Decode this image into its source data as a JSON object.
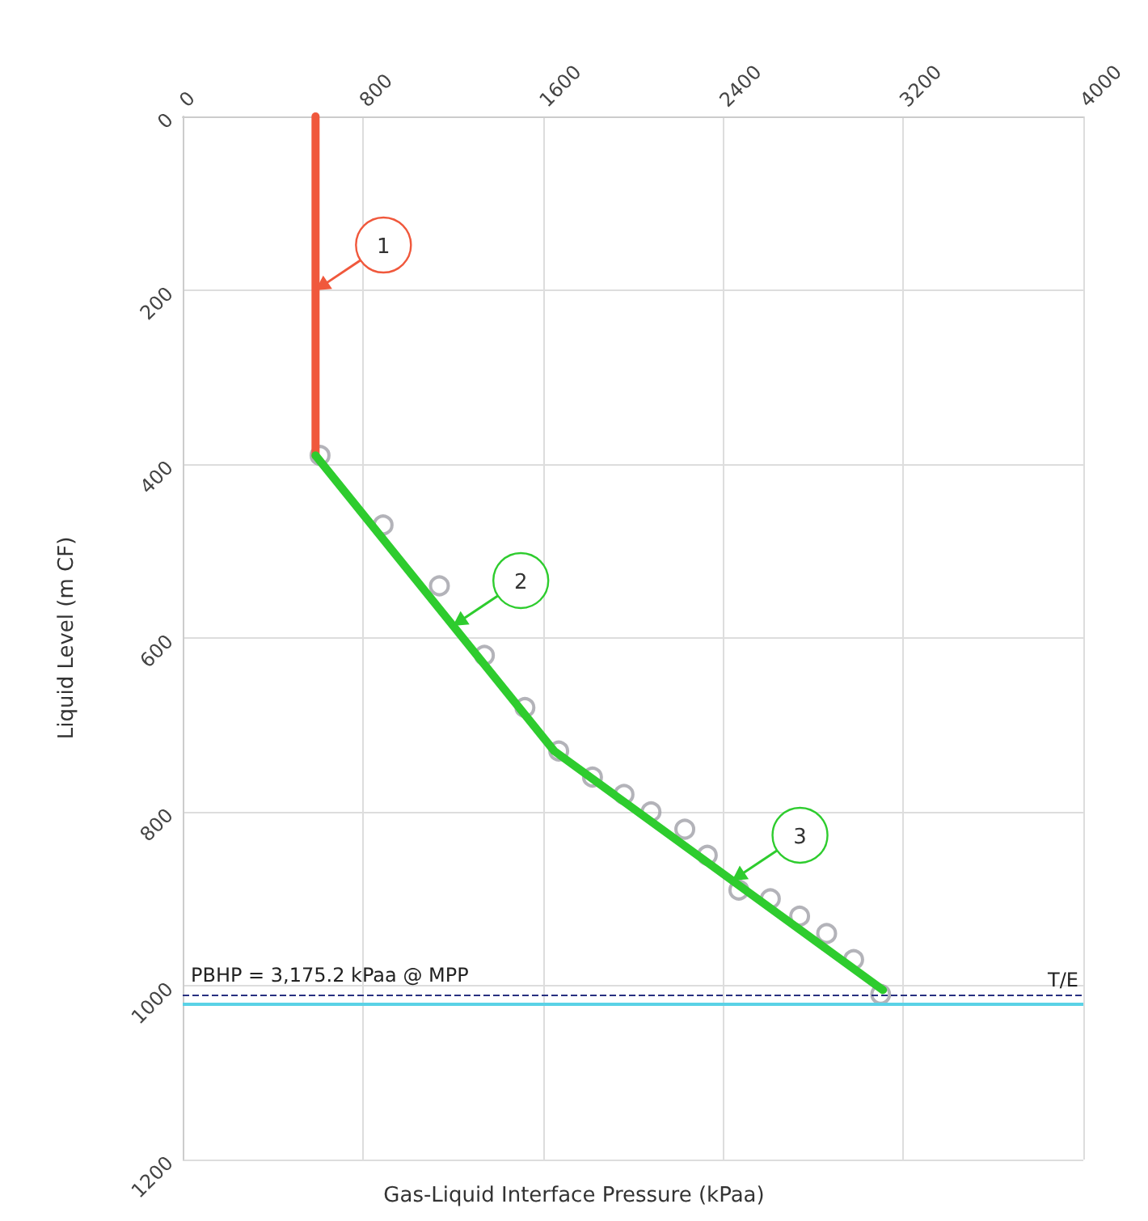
{
  "chart_data": {
    "type": "line",
    "xlabel": "Gas-Liquid Interface Pressure (kPaa)",
    "ylabel": "Liquid Level (m CF)",
    "series": [
      {
        "color": "#f0583c",
        "marker": "none",
        "x": [
          590,
          590
        ],
        "values": [
          0,
          390
        ]
      },
      {
        "color": "#2ecc2e",
        "marker": "none",
        "x": [
          590,
          1650,
          3110
        ],
        "values": [
          390,
          730,
          1005
        ]
      },
      {
        "type": "scatter",
        "color": "#a0a0a8",
        "marker": "circle",
        "x": [
          610,
          890,
          1140,
          1340,
          1520,
          1670,
          1820,
          1960,
          2080,
          2230,
          2330,
          2470,
          2610,
          2740,
          2860,
          2980,
          3100
        ],
        "values": [
          390,
          470,
          540,
          620,
          680,
          730,
          760,
          780,
          800,
          820,
          850,
          890,
          900,
          920,
          940,
          970,
          1010
        ]
      }
    ],
    "xlim": [
      0,
      4000
    ],
    "xticks": [
      0,
      800,
      1600,
      2400,
      3200,
      4000
    ],
    "ylim": [
      1200,
      0
    ],
    "yticks": [
      0,
      200,
      400,
      600,
      800,
      1000,
      1200
    ],
    "grid": true,
    "ref_lines": [
      {
        "axis": "y",
        "value": 1010,
        "label": "T/E",
        "color": "#283080",
        "line_style": "dashed"
      },
      {
        "axis": "y",
        "value": 1020,
        "color": "#5ad2e6",
        "line_style": "solid"
      }
    ],
    "annotations": [
      "PBHP = 3,175.2 kPaa @ MPP",
      {
        "text": "1",
        "x": 590,
        "y": 200
      },
      {
        "text": "2",
        "x": 1200,
        "y": 586
      },
      {
        "text": "3",
        "x": 2440,
        "y": 879
      }
    ]
  }
}
